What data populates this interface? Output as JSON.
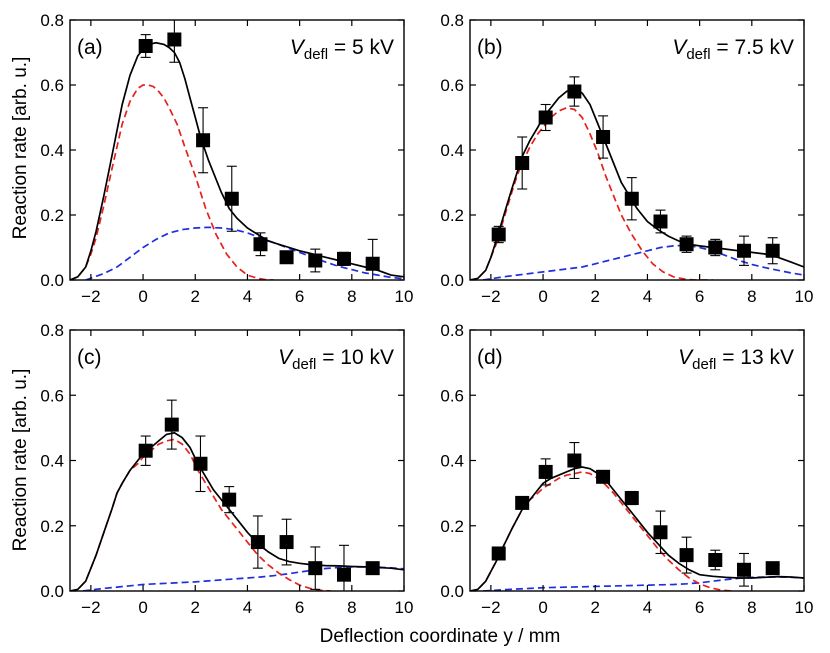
{
  "chart_data": {
    "type": "scatter",
    "xlabel": "Deflection coordinate y / mm",
    "ylabel": "Reaction rate [arb. u.]",
    "xlim": [
      -2.8,
      10
    ],
    "ylim": [
      0,
      0.8
    ],
    "xticks": [
      -2,
      0,
      2,
      4,
      6,
      8,
      10
    ],
    "yticks": [
      0.0,
      0.2,
      0.4,
      0.6,
      0.8
    ],
    "xtick_labels": [
      "−2",
      "0",
      "2",
      "4",
      "6",
      "8",
      "10"
    ],
    "ytick_labels": [
      "0.0",
      "0.2",
      "0.4",
      "0.6",
      "0.8"
    ],
    "colors": {
      "fit": "#000000",
      "red": "#e8201c",
      "blue": "#1f2fe0"
    },
    "panels": [
      {
        "label": "(a)",
        "vdefl_prefix": "V",
        "vdefl_sub": "defl",
        "vdefl_value": " = 5 kV",
        "points": [
          {
            "x": 0.1,
            "y": 0.72,
            "err": 0.035
          },
          {
            "x": 1.2,
            "y": 0.74,
            "err": 0.07
          },
          {
            "x": 2.3,
            "y": 0.43,
            "err": 0.1
          },
          {
            "x": 3.4,
            "y": 0.25,
            "err": 0.1
          },
          {
            "x": 4.5,
            "y": 0.11,
            "err": 0.035
          },
          {
            "x": 5.5,
            "y": 0.07,
            "err": 0.0
          },
          {
            "x": 6.6,
            "y": 0.06,
            "err": 0.035
          },
          {
            "x": 7.7,
            "y": 0.065,
            "err": 0.02
          },
          {
            "x": 8.8,
            "y": 0.05,
            "err": 0.075
          }
        ],
        "fit_curve": {
          "x": [
            -2.8,
            -2.5,
            -2.2,
            -2.0,
            -1.8,
            -1.5,
            -1.2,
            -1.0,
            -0.8,
            -0.5,
            -0.2,
            0.0,
            0.2,
            0.5,
            0.8,
            1.0,
            1.2,
            1.4,
            1.6,
            1.8,
            2.0,
            2.2,
            2.5,
            2.8,
            3.0,
            3.3,
            3.6,
            4.0,
            4.4,
            4.8,
            5.2,
            5.6,
            6.0,
            6.5,
            7.0,
            7.5,
            8.0,
            8.5,
            9.0,
            9.5,
            10.0
          ],
          "y": [
            0.0,
            0.01,
            0.04,
            0.09,
            0.15,
            0.26,
            0.38,
            0.46,
            0.54,
            0.63,
            0.69,
            0.71,
            0.725,
            0.73,
            0.725,
            0.715,
            0.7,
            0.67,
            0.62,
            0.56,
            0.5,
            0.44,
            0.37,
            0.31,
            0.27,
            0.22,
            0.19,
            0.16,
            0.14,
            0.12,
            0.11,
            0.1,
            0.09,
            0.08,
            0.07,
            0.06,
            0.05,
            0.04,
            0.03,
            0.015,
            0.01
          ]
        },
        "red_curve": {
          "x": [
            -2.8,
            -2.5,
            -2.2,
            -2.0,
            -1.8,
            -1.5,
            -1.2,
            -1.0,
            -0.8,
            -0.5,
            -0.2,
            0.0,
            0.2,
            0.4,
            0.6,
            0.8,
            1.0,
            1.3,
            1.6,
            2.0,
            2.4,
            2.8,
            3.2,
            3.6,
            4.0,
            4.4,
            4.8,
            5.0
          ],
          "y": [
            0.0,
            0.01,
            0.04,
            0.08,
            0.13,
            0.23,
            0.34,
            0.41,
            0.48,
            0.55,
            0.59,
            0.6,
            0.6,
            0.595,
            0.58,
            0.56,
            0.53,
            0.48,
            0.41,
            0.32,
            0.22,
            0.14,
            0.08,
            0.04,
            0.015,
            0.005,
            0.0,
            0.0
          ]
        },
        "blue_curve": {
          "x": [
            -2.2,
            -1.5,
            -1.0,
            -0.5,
            0.0,
            0.5,
            1.0,
            1.5,
            2.0,
            2.5,
            3.0,
            3.5,
            4.0,
            4.5,
            5.0,
            5.5,
            6.0,
            6.5,
            7.0,
            7.5,
            8.0,
            8.5,
            9.0,
            9.5,
            10.0
          ],
          "y": [
            0.0,
            0.02,
            0.04,
            0.07,
            0.1,
            0.125,
            0.145,
            0.155,
            0.16,
            0.162,
            0.16,
            0.155,
            0.145,
            0.13,
            0.115,
            0.1,
            0.085,
            0.07,
            0.055,
            0.042,
            0.032,
            0.022,
            0.015,
            0.008,
            0.004
          ]
        }
      },
      {
        "label": "(b)",
        "vdefl_prefix": "V",
        "vdefl_sub": "defl",
        "vdefl_value": " = 7.5 kV",
        "points": [
          {
            "x": -1.7,
            "y": 0.14,
            "err": 0.025
          },
          {
            "x": -0.8,
            "y": 0.36,
            "err": 0.08
          },
          {
            "x": 0.1,
            "y": 0.5,
            "err": 0.04
          },
          {
            "x": 1.2,
            "y": 0.58,
            "err": 0.045
          },
          {
            "x": 2.3,
            "y": 0.44,
            "err": 0.065
          },
          {
            "x": 3.4,
            "y": 0.25,
            "err": 0.065
          },
          {
            "x": 4.5,
            "y": 0.18,
            "err": 0.035
          },
          {
            "x": 5.5,
            "y": 0.11,
            "err": 0.025
          },
          {
            "x": 6.6,
            "y": 0.1,
            "err": 0.025
          },
          {
            "x": 7.7,
            "y": 0.09,
            "err": 0.045
          },
          {
            "x": 8.8,
            "y": 0.09,
            "err": 0.04
          }
        ],
        "fit_curve": {
          "x": [
            -2.8,
            -2.5,
            -2.2,
            -2.0,
            -1.8,
            -1.5,
            -1.2,
            -1.0,
            -0.8,
            -0.5,
            -0.2,
            0.0,
            0.3,
            0.6,
            0.9,
            1.2,
            1.5,
            1.8,
            2.1,
            2.4,
            2.7,
            3.0,
            3.3,
            3.6,
            4.0,
            4.4,
            4.8,
            5.2,
            5.6,
            6.0,
            6.5,
            7.0,
            7.5,
            8.0,
            8.5,
            9.0,
            9.5,
            10.0
          ],
          "y": [
            0.0,
            0.005,
            0.03,
            0.07,
            0.12,
            0.2,
            0.28,
            0.33,
            0.38,
            0.43,
            0.47,
            0.5,
            0.53,
            0.56,
            0.58,
            0.59,
            0.575,
            0.54,
            0.48,
            0.42,
            0.36,
            0.3,
            0.26,
            0.22,
            0.18,
            0.155,
            0.135,
            0.12,
            0.11,
            0.105,
            0.1,
            0.095,
            0.09,
            0.085,
            0.08,
            0.07,
            0.055,
            0.04
          ]
        },
        "red_curve": {
          "x": [
            -2.8,
            -2.5,
            -2.2,
            -2.0,
            -1.8,
            -1.5,
            -1.2,
            -1.0,
            -0.8,
            -0.5,
            -0.2,
            0.0,
            0.3,
            0.6,
            0.9,
            1.2,
            1.5,
            1.8,
            2.1,
            2.4,
            2.7,
            3.0,
            3.4,
            3.8,
            4.2,
            4.6,
            5.0,
            5.4,
            5.8,
            6.2,
            6.5
          ],
          "y": [
            0.0,
            0.005,
            0.03,
            0.07,
            0.11,
            0.19,
            0.27,
            0.32,
            0.36,
            0.41,
            0.45,
            0.47,
            0.5,
            0.52,
            0.53,
            0.525,
            0.5,
            0.45,
            0.39,
            0.32,
            0.26,
            0.2,
            0.14,
            0.09,
            0.05,
            0.025,
            0.01,
            0.003,
            0.0,
            0.0,
            0.0
          ]
        },
        "blue_curve": {
          "x": [
            -2.3,
            -1.5,
            -1.0,
            -0.5,
            0.0,
            0.5,
            1.0,
            1.5,
            2.0,
            2.5,
            3.0,
            3.5,
            4.0,
            4.5,
            5.0,
            5.5,
            6.0,
            6.5,
            7.0,
            7.5,
            8.0,
            8.5,
            9.0,
            9.5,
            10.0
          ],
          "y": [
            0.0,
            0.01,
            0.015,
            0.02,
            0.025,
            0.03,
            0.035,
            0.04,
            0.05,
            0.06,
            0.07,
            0.08,
            0.09,
            0.1,
            0.105,
            0.107,
            0.1,
            0.09,
            0.075,
            0.06,
            0.048,
            0.038,
            0.03,
            0.022,
            0.015
          ]
        }
      },
      {
        "label": "(c)",
        "vdefl_prefix": "V",
        "vdefl_sub": "defl",
        "vdefl_value": " = 10 kV",
        "points": [
          {
            "x": 0.1,
            "y": 0.43,
            "err": 0.045
          },
          {
            "x": 1.1,
            "y": 0.51,
            "err": 0.075
          },
          {
            "x": 2.2,
            "y": 0.39,
            "err": 0.085
          },
          {
            "x": 3.3,
            "y": 0.28,
            "err": 0.04
          },
          {
            "x": 4.4,
            "y": 0.15,
            "err": 0.08
          },
          {
            "x": 5.5,
            "y": 0.15,
            "err": 0.07
          },
          {
            "x": 6.6,
            "y": 0.07,
            "err": 0.065
          },
          {
            "x": 7.7,
            "y": 0.05,
            "err": 0.09
          },
          {
            "x": 8.8,
            "y": 0.07,
            "err": 0.0
          }
        ],
        "fit_curve": {
          "x": [
            -2.8,
            -2.5,
            -2.2,
            -2.0,
            -1.8,
            -1.5,
            -1.2,
            -1.0,
            -0.8,
            -0.5,
            -0.2,
            0.0,
            0.3,
            0.6,
            0.9,
            1.2,
            1.5,
            1.8,
            2.1,
            2.4,
            2.7,
            3.0,
            3.3,
            3.6,
            4.0,
            4.4,
            4.8,
            5.2,
            5.6,
            6.0,
            6.5,
            7.0,
            7.5,
            8.0,
            8.5,
            9.0,
            9.5,
            10.0
          ],
          "y": [
            0.0,
            0.005,
            0.03,
            0.07,
            0.11,
            0.18,
            0.25,
            0.3,
            0.33,
            0.37,
            0.4,
            0.42,
            0.44,
            0.46,
            0.48,
            0.485,
            0.47,
            0.44,
            0.39,
            0.35,
            0.31,
            0.28,
            0.25,
            0.22,
            0.18,
            0.145,
            0.12,
            0.1,
            0.09,
            0.085,
            0.08,
            0.078,
            0.077,
            0.075,
            0.074,
            0.072,
            0.07,
            0.065
          ]
        },
        "red_curve": {
          "x": [
            -2.8,
            -2.5,
            -2.2,
            -2.0,
            -1.8,
            -1.5,
            -1.2,
            -1.0,
            -0.8,
            -0.5,
            -0.2,
            0.0,
            0.3,
            0.6,
            0.9,
            1.2,
            1.5,
            1.8,
            2.1,
            2.4,
            2.7,
            3.0,
            3.3,
            3.6,
            4.0,
            4.4,
            4.8,
            5.2,
            5.6,
            6.0,
            6.4,
            6.8,
            7.2
          ],
          "y": [
            0.0,
            0.005,
            0.03,
            0.07,
            0.11,
            0.18,
            0.25,
            0.3,
            0.33,
            0.37,
            0.39,
            0.41,
            0.43,
            0.45,
            0.46,
            0.465,
            0.45,
            0.42,
            0.37,
            0.33,
            0.29,
            0.25,
            0.22,
            0.19,
            0.15,
            0.11,
            0.08,
            0.055,
            0.035,
            0.018,
            0.008,
            0.002,
            0.0
          ]
        },
        "blue_curve": {
          "x": [
            -2.3,
            -1.5,
            -1.0,
            -0.5,
            0.0,
            0.5,
            1.0,
            1.5,
            2.0,
            2.5,
            3.0,
            3.5,
            4.0,
            4.5,
            5.0,
            5.5,
            6.0,
            6.5,
            7.0,
            7.5,
            8.0,
            8.5,
            9.0,
            9.5,
            10.0
          ],
          "y": [
            0.0,
            0.008,
            0.012,
            0.016,
            0.02,
            0.022,
            0.024,
            0.026,
            0.028,
            0.031,
            0.034,
            0.037,
            0.04,
            0.043,
            0.047,
            0.052,
            0.058,
            0.064,
            0.069,
            0.072,
            0.074,
            0.074,
            0.073,
            0.071,
            0.068
          ]
        }
      },
      {
        "label": "(d)",
        "vdefl_prefix": "V",
        "vdefl_sub": "defl",
        "vdefl_value": " = 13 kV",
        "points": [
          {
            "x": -1.7,
            "y": 0.115,
            "err": 0.0
          },
          {
            "x": -0.8,
            "y": 0.27,
            "err": 0.0
          },
          {
            "x": 0.1,
            "y": 0.365,
            "err": 0.04
          },
          {
            "x": 1.2,
            "y": 0.4,
            "err": 0.055
          },
          {
            "x": 2.3,
            "y": 0.35,
            "err": 0.015
          },
          {
            "x": 3.4,
            "y": 0.285,
            "err": 0.02
          },
          {
            "x": 4.5,
            "y": 0.18,
            "err": 0.065
          },
          {
            "x": 5.5,
            "y": 0.11,
            "err": 0.055
          },
          {
            "x": 6.6,
            "y": 0.095,
            "err": 0.03
          },
          {
            "x": 7.7,
            "y": 0.065,
            "err": 0.05
          },
          {
            "x": 8.8,
            "y": 0.07,
            "err": 0.015
          }
        ],
        "fit_curve": {
          "x": [
            -2.8,
            -2.5,
            -2.2,
            -2.0,
            -1.8,
            -1.5,
            -1.2,
            -1.0,
            -0.8,
            -0.5,
            -0.2,
            0.0,
            0.3,
            0.6,
            0.9,
            1.2,
            1.5,
            1.8,
            2.1,
            2.4,
            2.7,
            3.0,
            3.3,
            3.6,
            4.0,
            4.4,
            4.8,
            5.2,
            5.6,
            6.0,
            6.5,
            7.0,
            7.5,
            8.0,
            8.5,
            9.0,
            9.5,
            10.0
          ],
          "y": [
            0.0,
            0.005,
            0.03,
            0.06,
            0.09,
            0.14,
            0.19,
            0.22,
            0.25,
            0.28,
            0.31,
            0.33,
            0.345,
            0.355,
            0.365,
            0.375,
            0.38,
            0.375,
            0.36,
            0.34,
            0.31,
            0.28,
            0.25,
            0.22,
            0.18,
            0.145,
            0.11,
            0.085,
            0.065,
            0.05,
            0.045,
            0.042,
            0.04,
            0.04,
            0.042,
            0.044,
            0.043,
            0.04
          ]
        },
        "red_curve": {
          "x": [
            -2.8,
            -2.5,
            -2.2,
            -2.0,
            -1.8,
            -1.5,
            -1.2,
            -1.0,
            -0.8,
            -0.5,
            -0.2,
            0.0,
            0.3,
            0.6,
            0.9,
            1.2,
            1.5,
            1.8,
            2.1,
            2.4,
            2.7,
            3.0,
            3.3,
            3.6,
            4.0,
            4.4,
            4.8,
            5.2,
            5.6,
            6.0,
            6.4,
            6.8,
            7.2
          ],
          "y": [
            0.0,
            0.005,
            0.03,
            0.06,
            0.09,
            0.14,
            0.19,
            0.22,
            0.25,
            0.28,
            0.3,
            0.315,
            0.33,
            0.345,
            0.355,
            0.36,
            0.365,
            0.36,
            0.345,
            0.325,
            0.3,
            0.27,
            0.24,
            0.21,
            0.17,
            0.13,
            0.095,
            0.065,
            0.04,
            0.022,
            0.01,
            0.003,
            0.0
          ]
        },
        "blue_curve": {
          "x": [
            -2.3,
            -1.5,
            -1.0,
            -0.5,
            0.0,
            0.5,
            1.0,
            1.5,
            2.0,
            2.5,
            3.0,
            3.5,
            4.0,
            4.5,
            5.0,
            5.5,
            6.0,
            6.5,
            7.0,
            7.5,
            8.0,
            8.5,
            9.0,
            9.5,
            10.0
          ],
          "y": [
            0.0,
            0.004,
            0.006,
            0.008,
            0.01,
            0.011,
            0.012,
            0.013,
            0.014,
            0.015,
            0.016,
            0.017,
            0.018,
            0.019,
            0.02,
            0.022,
            0.025,
            0.03,
            0.035,
            0.039,
            0.042,
            0.043,
            0.043,
            0.042,
            0.04
          ]
        }
      }
    ]
  }
}
